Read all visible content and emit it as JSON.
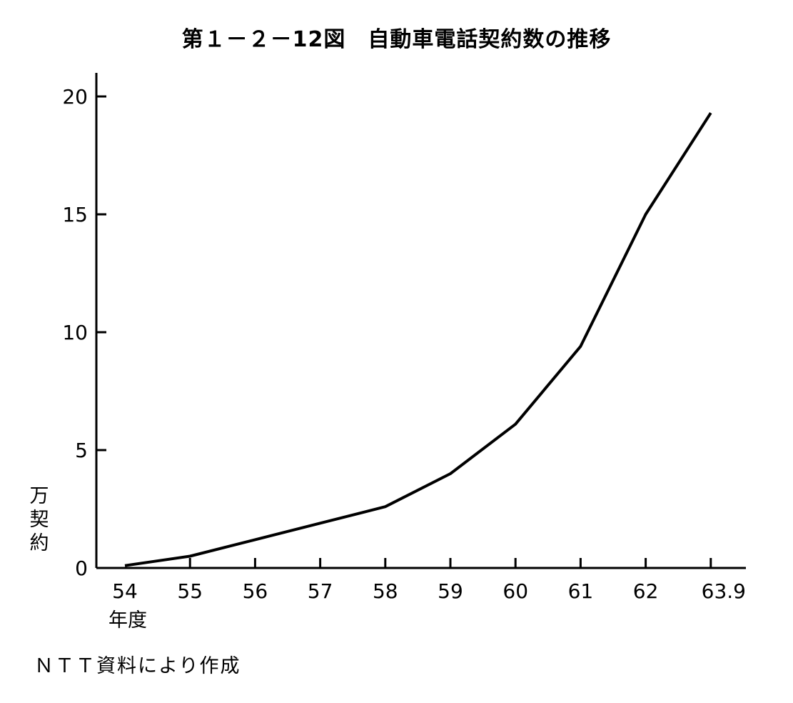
{
  "page": {
    "title": "第１－２－12図　自動車電話契約数の推移",
    "y_unit": [
      "万",
      "契",
      "約"
    ],
    "x_unit": "年度",
    "source": "ＮＴＴ資料により作成"
  },
  "chart_data": {
    "type": "line",
    "title": "第１－２－12図　自動車電話契約数の推移",
    "xlabel": "年度",
    "ylabel": "万契約",
    "categories": [
      "54",
      "55",
      "56",
      "57",
      "58",
      "59",
      "60",
      "61",
      "62",
      "63.9"
    ],
    "series": [
      {
        "values": [
          0.1,
          0.5,
          1.2,
          1.9,
          2.6,
          4.0,
          6.1,
          9.4,
          15.0,
          19.3
        ]
      }
    ],
    "ylim": [
      0,
      20
    ],
    "yticks": [
      0,
      5,
      10,
      15,
      20
    ],
    "grid": false,
    "legend": "none",
    "line_color": "#000000"
  }
}
